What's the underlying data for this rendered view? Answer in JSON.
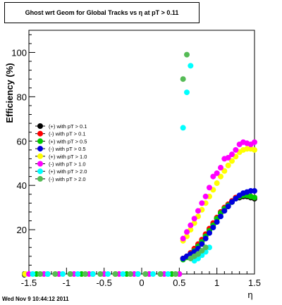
{
  "chart_data": {
    "type": "scatter",
    "title": "Ghost wrt Geom for Global Tracks vs    η at pT > 0.11",
    "xlabel": "η",
    "ylabel": "Efficiency (%)",
    "xlim": [
      -1.5,
      1.5
    ],
    "ylim": [
      0,
      110
    ],
    "x_ticks": [
      "-1.5",
      "-1",
      "-0.5",
      "0",
      "0.5",
      "1",
      "1.5"
    ],
    "y_ticks": [
      "0",
      "20",
      "40",
      "60",
      "80",
      "100"
    ],
    "grid": false,
    "legend_position": "left",
    "series": [
      {
        "name": "(+) with pT > 0.1",
        "color": "#000000",
        "x": [
          0.55,
          0.6,
          0.65,
          0.7,
          0.75,
          0.8,
          0.85,
          0.9,
          0.95,
          1.0,
          1.05,
          1.1,
          1.15,
          1.2,
          1.25,
          1.3,
          1.35,
          1.4,
          1.45,
          1.5
        ],
        "y": [
          7,
          8,
          9.5,
          11,
          13,
          15,
          17.5,
          20,
          22.5,
          25,
          27.5,
          29.5,
          31,
          32.5,
          34,
          34.5,
          35,
          35,
          34.5,
          34
        ]
      },
      {
        "name": "(-) with pT > 0.1",
        "color": "#ff0000",
        "x": [
          0.55,
          0.6,
          0.65,
          0.7,
          0.75,
          0.8,
          0.85,
          0.9,
          0.95,
          1.0,
          1.05,
          1.1,
          1.15,
          1.2,
          1.25,
          1.3,
          1.35,
          1.4,
          1.45,
          1.5
        ],
        "y": [
          7,
          8,
          9.5,
          11.5,
          13.5,
          15.5,
          18,
          20.5,
          23,
          25.5,
          28,
          30,
          31.5,
          33,
          34.5,
          35,
          35.5,
          35.5,
          35,
          34.5
        ]
      },
      {
        "name": "(+) with pT > 0.5",
        "color": "#00cc00",
        "x": [
          -1.55,
          -1.4,
          -1.25,
          -1.1,
          -0.95,
          -0.8,
          -0.65,
          -0.5,
          -0.35,
          -0.2,
          -0.05,
          0.1,
          0.25,
          0.4,
          0.5,
          0.55,
          0.6,
          0.65,
          0.7,
          0.75,
          0.8,
          0.85,
          0.9,
          0.95,
          1.0,
          1.05,
          1.1,
          1.15,
          1.2,
          1.25,
          1.3,
          1.35,
          1.4,
          1.45,
          1.5
        ],
        "y": [
          0,
          0,
          0,
          0,
          0,
          0,
          0,
          0,
          0,
          0,
          0,
          0,
          0,
          0,
          0,
          6.5,
          7.5,
          9,
          10.5,
          12.5,
          14.5,
          17,
          19.5,
          22,
          25,
          27.5,
          29.5,
          31,
          32.5,
          34,
          35,
          35.5,
          35.5,
          35,
          34.5
        ]
      },
      {
        "name": "(-) with pT > 0.5",
        "color": "#0000dd",
        "x": [
          0.55,
          0.6,
          0.65,
          0.7,
          0.75,
          0.8,
          0.85,
          0.9,
          0.95,
          1.0,
          1.05,
          1.1,
          1.15,
          1.2,
          1.25,
          1.3,
          1.35,
          1.4,
          1.45,
          1.5
        ],
        "y": [
          7,
          8,
          9,
          10,
          11.5,
          13.5,
          16,
          18.5,
          21,
          23.5,
          26,
          28.5,
          30.5,
          32.5,
          34,
          35.5,
          36.5,
          37,
          37.5,
          37.5
        ]
      },
      {
        "name": "(+) with pT > 1.0",
        "color": "#ffff00",
        "x": [
          -1.55,
          -1.35,
          -1.15,
          -0.95,
          -0.75,
          -0.55,
          -0.35,
          -0.15,
          0.05,
          0.25,
          0.45,
          0.55,
          0.6,
          0.65,
          0.7,
          0.75,
          0.8,
          0.85,
          0.9,
          0.95,
          1.0,
          1.05,
          1.1,
          1.15,
          1.2,
          1.25,
          1.3,
          1.35,
          1.4,
          1.45,
          1.5
        ],
        "y": [
          0,
          0,
          0,
          0,
          0,
          0,
          0,
          0,
          0,
          0,
          0,
          15,
          17,
          20,
          23,
          26,
          29,
          32,
          35,
          38,
          41,
          44,
          46.5,
          49,
          51,
          53,
          55,
          56,
          56.5,
          56.5,
          56
        ]
      },
      {
        "name": "(-) with pT > 1.0",
        "color": "#ff00ff",
        "x": [
          -1.5,
          -1.3,
          -1.1,
          -0.9,
          -0.7,
          -0.5,
          -0.3,
          -0.1,
          0.1,
          0.3,
          0.5,
          0.55,
          0.6,
          0.65,
          0.7,
          0.75,
          0.8,
          0.85,
          0.9,
          0.95,
          1.0,
          1.05,
          1.1,
          1.15,
          1.2,
          1.25,
          1.3,
          1.35,
          1.4,
          1.45,
          1.5
        ],
        "y": [
          0,
          0,
          0,
          0,
          0,
          0,
          0,
          0,
          0,
          0,
          0,
          16,
          19,
          22,
          25,
          28.5,
          32,
          35,
          39,
          44,
          45.5,
          48,
          52,
          52.5,
          54,
          56,
          58.5,
          59.5,
          59,
          58.5,
          59.5
        ]
      },
      {
        "name": "(+) with pT > 2.0",
        "color": "#00ffff",
        "x": [
          -1.45,
          -1.25,
          -1.05,
          -0.85,
          -0.65,
          -0.45,
          -0.25,
          -0.05,
          0.15,
          0.35,
          0.55,
          0.6,
          0.65,
          0.7,
          0.75,
          0.8,
          0.85,
          0.9
        ],
        "y": [
          0,
          0,
          0,
          0,
          0,
          0,
          0,
          0,
          0,
          0,
          66,
          82,
          94,
          6,
          7,
          8.5,
          10,
          12
        ]
      },
      {
        "name": "(-) with pT > 2.0",
        "color": "#55bb55",
        "x": [
          -1.35,
          -1.15,
          -0.95,
          -0.75,
          -0.55,
          -0.35,
          -0.15,
          0.05,
          0.25,
          0.45,
          0.55,
          0.6,
          0.65,
          0.7,
          0.75,
          0.8,
          0.85
        ],
        "y": [
          0,
          0,
          0,
          0,
          0,
          0,
          0,
          0,
          0,
          0,
          88,
          99,
          7,
          8,
          9,
          10.5,
          12
        ]
      }
    ]
  },
  "footer": {
    "timestamp": "Wed Nov  9 10:44:12 2011"
  }
}
